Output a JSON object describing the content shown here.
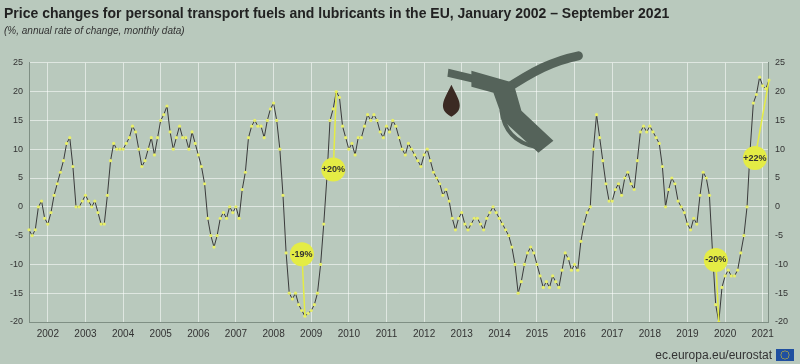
{
  "chart_data": {
    "type": "line",
    "title": "Price changes for personal transport fuels and lubricants in the EU, January 2002 – September 2021",
    "subtitle": "(%, annual rate of change, monthly data)",
    "source": "ec.europa.eu/eurostat",
    "categories": [
      null,
      null,
      null,
      null,
      null,
      null,
      "2002",
      null,
      null,
      null,
      null,
      null,
      null,
      null,
      null,
      null,
      null,
      null,
      "2003",
      null,
      null,
      null,
      null,
      null,
      null,
      null,
      null,
      null,
      null,
      null,
      "2004",
      null,
      null,
      null,
      null,
      null,
      null,
      null,
      null,
      null,
      null,
      null,
      "2005",
      null,
      null,
      null,
      null,
      null,
      null,
      null,
      null,
      null,
      null,
      null,
      "2006",
      null,
      null,
      null,
      null,
      null,
      null,
      null,
      null,
      null,
      null,
      null,
      "2007",
      null,
      null,
      null,
      null,
      null,
      null,
      null,
      null,
      null,
      null,
      null,
      "2008",
      null,
      null,
      null,
      null,
      null,
      null,
      null,
      null,
      null,
      null,
      null,
      "2009",
      null,
      null,
      null,
      null,
      null,
      null,
      null,
      null,
      null,
      null,
      null,
      "2010",
      null,
      null,
      null,
      null,
      null,
      null,
      null,
      null,
      null,
      null,
      null,
      "2011",
      null,
      null,
      null,
      null,
      null,
      null,
      null,
      null,
      null,
      null,
      null,
      "2012",
      null,
      null,
      null,
      null,
      null,
      null,
      null,
      null,
      null,
      null,
      null,
      "2013",
      null,
      null,
      null,
      null,
      null,
      null,
      null,
      null,
      null,
      null,
      null,
      "2014",
      null,
      null,
      null,
      null,
      null,
      null,
      null,
      null,
      null,
      null,
      null,
      "2015",
      null,
      null,
      null,
      null,
      null,
      null,
      null,
      null,
      null,
      null,
      null,
      "2016",
      null,
      null,
      null,
      null,
      null,
      null,
      null,
      null,
      null,
      null,
      null,
      "2017",
      null,
      null,
      null,
      null,
      null,
      null,
      null,
      null,
      null,
      null,
      null,
      "2018",
      null,
      null,
      null,
      null,
      null,
      null,
      null,
      null,
      null,
      null,
      null,
      "2019",
      null,
      null,
      null,
      null,
      null,
      null,
      null,
      null,
      null,
      null,
      null,
      "2020",
      null,
      null,
      null,
      null,
      null,
      null,
      null,
      null,
      null,
      null,
      null,
      "2021",
      null,
      null
    ],
    "values": [
      -4,
      -5,
      -4,
      0,
      1,
      -2,
      -3,
      -1,
      2,
      4,
      6,
      8,
      11,
      12,
      7,
      0,
      0,
      1,
      2,
      1,
      0,
      1,
      -1,
      -3,
      -3,
      2,
      8,
      11,
      10,
      10,
      10,
      11,
      12,
      14,
      13,
      10,
      7,
      8,
      10,
      12,
      9,
      12,
      15,
      16,
      17.5,
      13,
      10,
      12,
      14,
      12,
      12,
      10,
      13,
      11,
      9,
      7,
      4,
      -2,
      -5,
      -7,
      -5,
      -2,
      -1,
      -2,
      0,
      -1,
      0,
      -2,
      3,
      6,
      12,
      14,
      15,
      14,
      14,
      12,
      15,
      17,
      18,
      15,
      10,
      2,
      -8,
      -15,
      -16,
      -15,
      -17,
      -18,
      -19,
      -18.5,
      -18,
      -17,
      -15,
      -10,
      -3,
      5,
      15,
      17,
      20,
      19,
      14,
      12,
      10,
      11,
      9,
      12,
      12,
      14,
      16,
      15,
      16,
      15,
      13,
      12,
      14,
      13,
      15,
      14,
      12,
      10,
      9,
      11,
      10,
      9,
      8,
      7,
      9,
      10,
      8,
      6,
      5,
      4,
      2,
      3,
      1,
      -2,
      -4,
      -2,
      -1,
      -3,
      -4,
      -3,
      -2,
      -2,
      -3,
      -4,
      -2,
      -1,
      0,
      -1,
      -2,
      -3,
      -4,
      -5,
      -7,
      -10,
      -15,
      -13,
      -10,
      -8,
      -7,
      -8,
      -10,
      -12,
      -14,
      -13,
      -14,
      -12,
      -13,
      -14,
      -11,
      -8,
      -9,
      -11,
      -10,
      -11,
      -6,
      -3,
      -1,
      0,
      10,
      16,
      12,
      8,
      4,
      1,
      1,
      3,
      4,
      2,
      5,
      6,
      4,
      3,
      8,
      13,
      14,
      13,
      14,
      13,
      12,
      11,
      7,
      0,
      3,
      5,
      4,
      1,
      0,
      -1,
      -3,
      -4,
      -2,
      -3,
      2,
      6,
      5,
      2,
      -8,
      -17,
      -20,
      -14,
      -12,
      -11,
      -12,
      -12,
      -11,
      -8,
      -5,
      0,
      10,
      18,
      19.5,
      22.5,
      21,
      20.5,
      22
    ],
    "color": "#3a3a3a",
    "marker": "circle",
    "ylim": [
      -20,
      25
    ],
    "yticks": [
      -20,
      -15,
      -10,
      -5,
      0,
      5,
      10,
      15,
      20,
      25
    ],
    "y2lim": [
      -20,
      25
    ],
    "y2ticks": [
      -20,
      -15,
      -10,
      -5,
      0,
      5,
      10,
      15,
      20,
      25
    ],
    "grid": true,
    "annotations": [
      {
        "label": "-19%",
        "value": -19
      },
      {
        "label": "+20%",
        "value": 20
      },
      {
        "label": "-20%",
        "value": -20
      },
      {
        "label": "+22%",
        "value": 22
      }
    ]
  }
}
